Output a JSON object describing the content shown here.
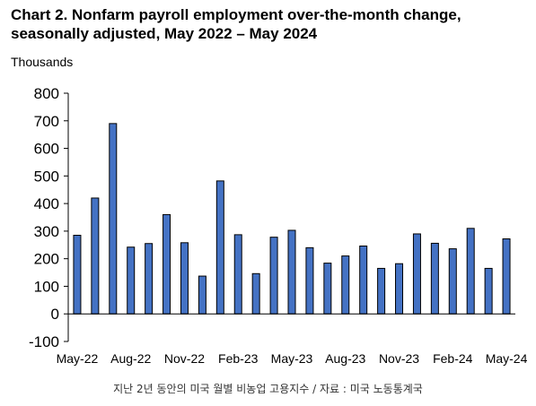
{
  "header": {
    "title_line1": "Chart 2. Nonfarm payroll employment over-the-month change,",
    "title_line2": "seasonally adjusted, May 2022 – May 2024",
    "units": "Thousands"
  },
  "caption": "지난 2년 동안의 미국 월별 비농업 고용지수 / 자료 : 미국 노동통계국",
  "colors": {
    "bar_fill": "#4472C4",
    "bar_stroke": "#000000",
    "axis": "#000000"
  },
  "chart_data": {
    "type": "bar",
    "title": "Chart 2. Nonfarm payroll employment over-the-month change, seasonally adjusted, May 2022 – May 2024",
    "ylabel": "Thousands",
    "xlabel": "",
    "ylim": [
      -100,
      800
    ],
    "yticks": [
      -100,
      0,
      100,
      200,
      300,
      400,
      500,
      600,
      700,
      800
    ],
    "xtick_labels": [
      "May-22",
      "Aug-22",
      "Nov-22",
      "Feb-23",
      "May-23",
      "Aug-23",
      "Nov-23",
      "Feb-24",
      "May-24"
    ],
    "categories": [
      "May-22",
      "Jun-22",
      "Jul-22",
      "Aug-22",
      "Sep-22",
      "Oct-22",
      "Nov-22",
      "Dec-22",
      "Jan-23",
      "Feb-23",
      "Mar-23",
      "Apr-23",
      "May-23",
      "Jun-23",
      "Jul-23",
      "Aug-23",
      "Sep-23",
      "Oct-23",
      "Nov-23",
      "Dec-23",
      "Jan-24",
      "Feb-24",
      "Mar-24",
      "Apr-24",
      "May-24"
    ],
    "values": [
      285,
      420,
      690,
      242,
      255,
      360,
      258,
      137,
      482,
      287,
      146,
      278,
      303,
      240,
      184,
      210,
      246,
      165,
      182,
      290,
      256,
      236,
      310,
      165,
      272
    ],
    "grid": false,
    "legend": "none"
  }
}
